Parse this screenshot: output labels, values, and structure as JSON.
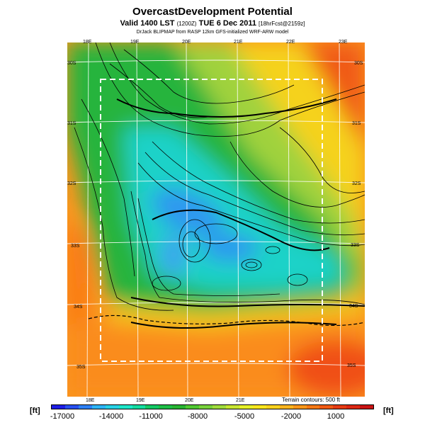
{
  "header": {
    "title": "OvercastDevelopment Potential",
    "subtitle_main": "Valid 1400 LST",
    "subtitle_utc": "(1200Z)",
    "subtitle_date": "TUE 6 Dec 2011",
    "subtitle_fcst": "[18hrFcst@2159z]",
    "credit": "DrJack BLIPMAP from RASP 12km GFS-initialized WRF-ARW model"
  },
  "map": {
    "top_lon_labels": [
      "18E",
      "19E",
      "20E",
      "21E",
      "22E",
      "23E"
    ],
    "bottom_lon_labels": [
      "18E",
      "19E",
      "20E",
      "21E"
    ],
    "left_lat_labels": [
      "30S",
      "31S",
      "32S",
      "33S",
      "34S",
      "35S"
    ],
    "right_lat_labels": [
      "30S",
      "31S",
      "32S",
      "33S",
      "34S",
      "35S"
    ],
    "terrain_note": "Terrain contours: 500 ft"
  },
  "colorbar": {
    "unit_left": "[ft]",
    "unit_right": "[ft]",
    "tick_labels": [
      "-17000",
      "-14000",
      "-11000",
      "-8000",
      "-5000",
      "-2000",
      "1000"
    ],
    "colors": [
      "#1e1ee6",
      "#2850f0",
      "#2d80f5",
      "#2db4f5",
      "#28d2e6",
      "#1ee6c8",
      "#14dca0",
      "#14c864",
      "#1ebe46",
      "#28b432",
      "#50c832",
      "#78d23c",
      "#a0dc3c",
      "#c8e632",
      "#e6f028",
      "#fae61e",
      "#fad21e",
      "#fab41e",
      "#fa9619",
      "#f57814",
      "#f05a14",
      "#e63c14",
      "#dc2814",
      "#c81414"
    ]
  }
}
